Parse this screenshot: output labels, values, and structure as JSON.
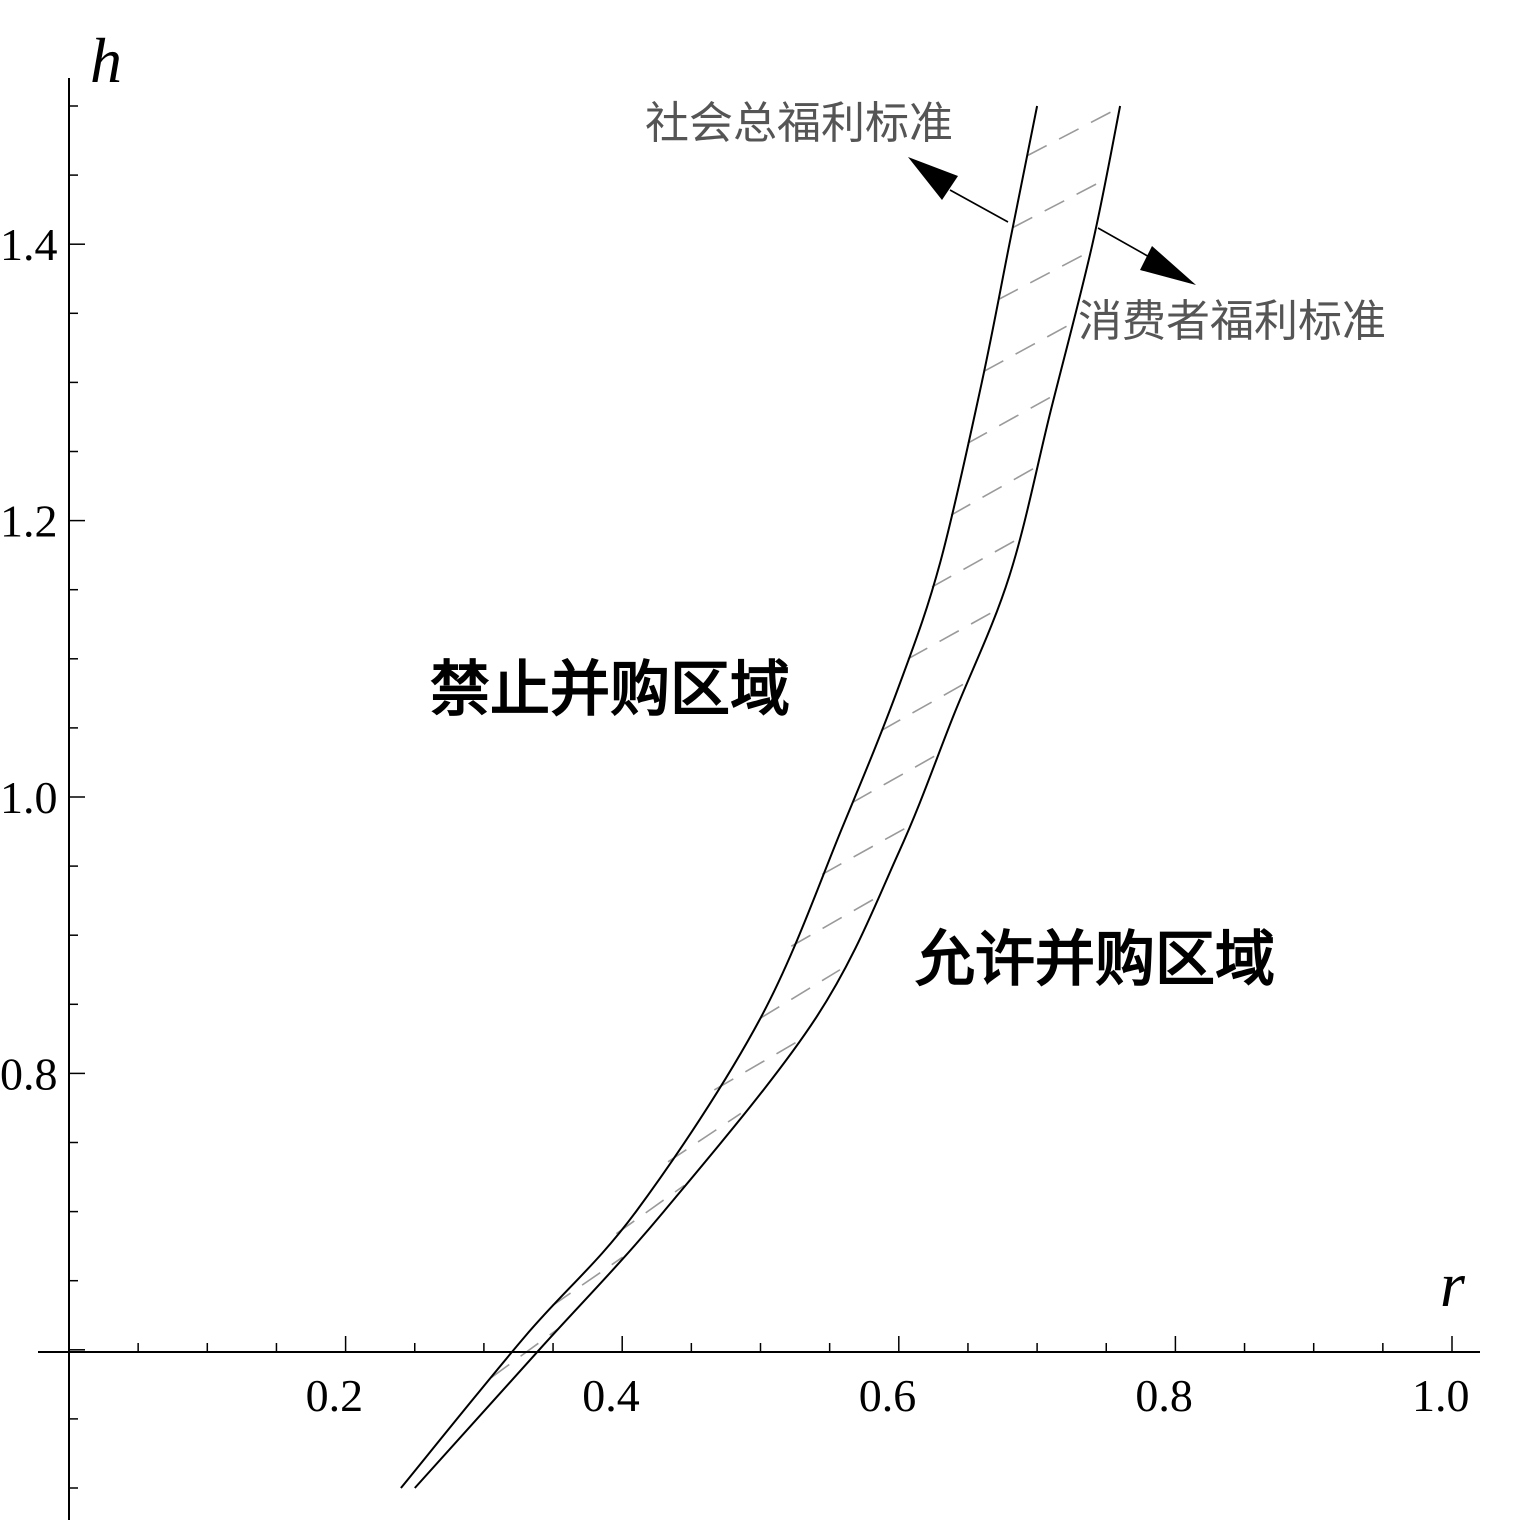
{
  "chart_data": {
    "type": "line",
    "xlabel": "r",
    "ylabel": "h",
    "xlim": [
      0,
      1.0
    ],
    "ylim": [
      0.5,
      1.5
    ],
    "x_ticks": [
      0.2,
      0.4,
      0.6,
      0.8,
      1.0
    ],
    "x_tick_labels": [
      "0.2",
      "0.4",
      "0.6",
      "0.8",
      "1.0"
    ],
    "y_ticks": [
      0.8,
      1.0,
      1.2,
      1.4
    ],
    "y_tick_labels": [
      "0.8",
      "1.0",
      "1.2",
      "1.4"
    ],
    "grid": false,
    "series": [
      {
        "name": "社会总福利标准",
        "x": [
          0.24,
          0.33,
          0.41,
          0.5,
          0.56,
          0.6,
          0.63,
          0.66,
          0.68,
          0.7
        ],
        "y": [
          0.5,
          0.61,
          0.7,
          0.84,
          0.98,
          1.08,
          1.17,
          1.3,
          1.4,
          1.5
        ]
      },
      {
        "name": "消费者福利标准",
        "x": [
          0.25,
          0.34,
          0.43,
          0.54,
          0.6,
          0.64,
          0.68,
          0.71,
          0.74,
          0.76
        ],
        "y": [
          0.5,
          0.6,
          0.7,
          0.84,
          0.96,
          1.06,
          1.16,
          1.28,
          1.4,
          1.5
        ]
      }
    ],
    "annotations": {
      "region_above": "禁止并购区域",
      "region_below": "允许并购区域"
    }
  }
}
